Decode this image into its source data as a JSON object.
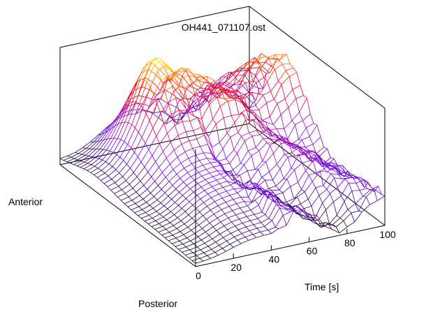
{
  "chart_data": {
    "type": "surface",
    "title": "OH441_071107.ost",
    "xlabel": "Time [s]",
    "y_axis_labels": {
      "start": "Posterior",
      "end": "Anterior"
    },
    "x_ticks": [
      "0",
      "20",
      "40",
      "60",
      "80",
      "100"
    ],
    "xlim": [
      0,
      100
    ],
    "grid": false,
    "colormap": [
      "#000000",
      "#8000ff",
      "#ff0000",
      "#ffff00"
    ],
    "z_level_description": "relative magnitude 0-1; peak near t=35 in mid-anterior region",
    "time_samples": 25,
    "position_samples": 40
  }
}
